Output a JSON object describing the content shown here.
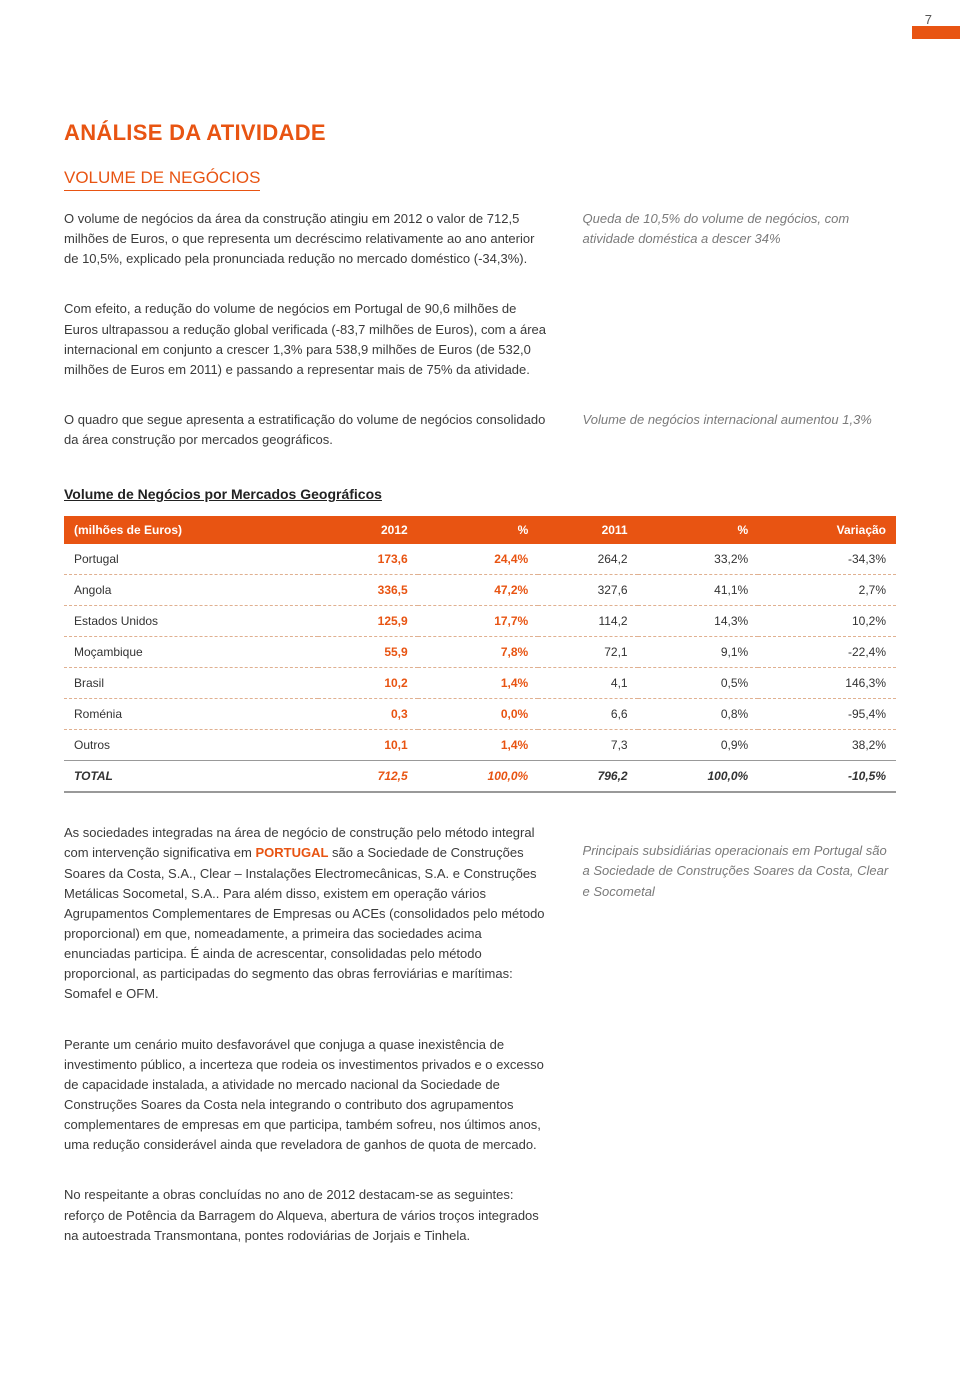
{
  "page_number": "7",
  "accent_color": "#e85412",
  "title": "ANÁLISE DA ATIVIDADE",
  "subtitle": "VOLUME DE NEGÓCIOS",
  "paragraphs": {
    "p1": "O volume de negócios da área da construção atingiu em 2012 o valor de 712,5 milhões de Euros, o que representa um decréscimo relativamente ao ano anterior de 10,5%, explicado pela pronunciada redução no mercado doméstico (-34,3%).",
    "p2": "Com efeito, a redução do volume de negócios em Portugal de 90,6 milhões de Euros ultrapassou a redução global verificada (-83,7 milhões de Euros), com a área internacional em conjunto a crescer 1,3% para 538,9 milhões de Euros (de 532,0 milhões de Euros em 2011) e passando a representar mais de 75% da atividade.",
    "p3": "O quadro que segue apresenta a estratificação do volume de negócios consolidado da área construção por mercados geográficos.",
    "p4a": "As sociedades integradas na área de negócio de construção pelo método integral com intervenção significativa em ",
    "p4_country": "PORTUGAL",
    "p4b": " são a Sociedade de Construções Soares da Costa, S.A., Clear – Instalações Electromecânicas, S.A. e Construções Metálicas Socometal, S.A.. Para além disso, existem em operação vários Agrupamentos Complementares de Empresas ou ACEs (consolidados pelo método proporcional) em que, nomeadamente, a primeira das sociedades acima enunciadas participa. É ainda de acrescentar, consolidadas pelo método proporcional, as participadas do segmento das obras ferroviárias e marítimas: Somafel e OFM.",
    "p5": "Perante um cenário muito desfavorável que conjuga a quase inexistência de investimento público, a incerteza que rodeia os investimentos privados e o excesso de capacidade instalada, a atividade no mercado nacional da Sociedade de Construções Soares da Costa nela integrando o contributo dos agrupamentos complementares de empresas em que participa, também sofreu, nos últimos anos, uma redução considerável ainda que reveladora de ganhos de quota de mercado.",
    "p6": "No respeitante a obras concluídas no ano de 2012 destacam-se as seguintes: reforço de Potência da Barragem do Alqueva, abertura de vários troços integrados na autoestrada Transmontana, pontes rodoviárias de Jorjais e Tinhela."
  },
  "callouts": {
    "c1": "Queda de 10,5% do volume de negócios, com atividade doméstica a descer 34%",
    "c2": "Volume de negócios internacional aumentou 1,3%",
    "c3": "Principais subsidiárias operacionais em Portugal são a Sociedade de Construções Soares da Costa, Clear e Socometal"
  },
  "table": {
    "title": "Volume de Negócios por Mercados Geográficos",
    "header_bg": "#e85412",
    "header_color": "#ffffff",
    "row_border": "#e0b090",
    "columns": [
      "(milhões de Euros)",
      "2012",
      "%",
      "2011",
      "%",
      "Variação"
    ],
    "rows": [
      {
        "label": "Portugal",
        "v2012": "173,6",
        "p2012": "24,4%",
        "v2011": "264,2",
        "p2011": "33,2%",
        "var": "-34,3%"
      },
      {
        "label": "Angola",
        "v2012": "336,5",
        "p2012": "47,2%",
        "v2011": "327,6",
        "p2011": "41,1%",
        "var": "2,7%"
      },
      {
        "label": "Estados Unidos",
        "v2012": "125,9",
        "p2012": "17,7%",
        "v2011": "114,2",
        "p2011": "14,3%",
        "var": "10,2%"
      },
      {
        "label": "Moçambique",
        "v2012": "55,9",
        "p2012": "7,8%",
        "v2011": "72,1",
        "p2011": "9,1%",
        "var": "-22,4%"
      },
      {
        "label": "Brasil",
        "v2012": "10,2",
        "p2012": "1,4%",
        "v2011": "4,1",
        "p2011": "0,5%",
        "var": "146,3%"
      },
      {
        "label": "Roménia",
        "v2012": "0,3",
        "p2012": "0,0%",
        "v2011": "6,6",
        "p2011": "0,8%",
        "var": "-95,4%"
      },
      {
        "label": "Outros",
        "v2012": "10,1",
        "p2012": "1,4%",
        "v2011": "7,3",
        "p2011": "0,9%",
        "var": "38,2%"
      }
    ],
    "total": {
      "label": "TOTAL",
      "v2012": "712,5",
      "p2012": "100,0%",
      "v2011": "796,2",
      "p2011": "100,0%",
      "var": "-10,5%"
    }
  }
}
